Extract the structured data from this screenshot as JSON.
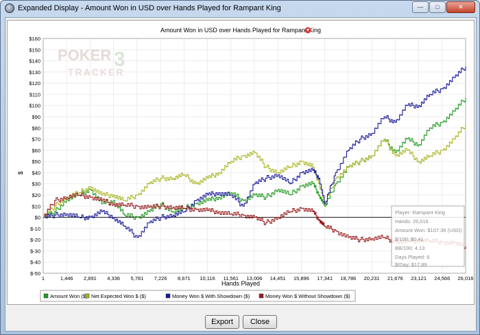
{
  "window": {
    "title": "Expanded Display - Amount Won in USD over Hands Played for Rampant King",
    "minimize_glyph": "—",
    "maximize_glyph": "□",
    "close_glyph": "✕"
  },
  "watermark": {
    "line1": "POKER",
    "line2": "TRACKER",
    "badge": "3"
  },
  "buttons": {
    "export": "Export",
    "close": "Close"
  },
  "tooltip": {
    "player": "Player: Rampant King",
    "hands": "Hands: 26,016",
    "amount_won": "Amount Won: $107.36 (USD)",
    "per100": "$/100: $0.41",
    "bb100": "BB/100: 4.13",
    "days": "Days Played: 6",
    "per_day": "$/Day: $17.89"
  },
  "colors": {
    "amount_won": "#1f9a1f",
    "net_expected": "#a8b421",
    "showdown": "#1a1a9a",
    "without_showdown": "#9a1a1a",
    "zero_line": "#000000",
    "grid": "#e6e6e6"
  },
  "chart_data": {
    "type": "line",
    "title": "Amount Won in USD over Hands Played for Rampant King",
    "xlabel": "Hands Played",
    "ylabel": "$",
    "xlim": [
      1,
      26016
    ],
    "ylim": [
      -50,
      160
    ],
    "x_ticks": [
      "1",
      "1,446",
      "2,891",
      "4,336",
      "5,781",
      "7,226",
      "8,671",
      "10,116",
      "11,561",
      "13,006",
      "14,451",
      "15,896",
      "17,341",
      "18,786",
      "20,231",
      "21,676",
      "23,121",
      "24,566",
      "26,016"
    ],
    "y_ticks": [
      "$160",
      "$150",
      "$140",
      "$130",
      "$120",
      "$110",
      "$100",
      "$90",
      "$80",
      "$70",
      "$60",
      "$50",
      "$40",
      "$30",
      "$20",
      "$10",
      "$0",
      "$-10",
      "$-20",
      "$-30",
      "$-40",
      "$-50"
    ],
    "x": [
      1,
      700,
      1446,
      2200,
      2891,
      3600,
      4336,
      5000,
      5781,
      6500,
      7226,
      8000,
      8671,
      9400,
      10116,
      10800,
      11561,
      12300,
      13006,
      13700,
      14451,
      15200,
      15896,
      16600,
      17000,
      17341,
      18000,
      18786,
      19500,
      20231,
      21000,
      21676,
      22400,
      23121,
      23800,
      24566,
      25300,
      26016
    ],
    "series": [
      {
        "name": "Amount Won ($)",
        "color_key": "amount_won",
        "values": [
          0,
          5,
          16,
          20,
          25,
          12,
          15,
          2,
          0,
          5,
          12,
          5,
          8,
          12,
          15,
          18,
          22,
          15,
          20,
          18,
          25,
          20,
          28,
          30,
          20,
          10,
          30,
          45,
          50,
          55,
          70,
          58,
          70,
          65,
          80,
          85,
          95,
          107
        ]
      },
      {
        "name": "Net Expected Won $ ($)",
        "color_key": "net_expected",
        "values": [
          0,
          10,
          18,
          22,
          27,
          20,
          20,
          15,
          20,
          30,
          35,
          35,
          38,
          30,
          35,
          40,
          50,
          55,
          58,
          45,
          40,
          45,
          50,
          45,
          30,
          12,
          35,
          45,
          50,
          55,
          70,
          55,
          60,
          50,
          55,
          60,
          70,
          83
        ]
      },
      {
        "name": "Money Won $ With Showdown ($)",
        "color_key": "showdown",
        "values": [
          0,
          2,
          3,
          0,
          0,
          5,
          0,
          -8,
          -18,
          -5,
          0,
          2,
          5,
          15,
          20,
          22,
          20,
          10,
          30,
          35,
          38,
          30,
          40,
          42,
          35,
          12,
          40,
          60,
          70,
          75,
          90,
          85,
          100,
          100,
          110,
          115,
          125,
          135
        ]
      },
      {
        "name": "Money Won $ Without Showdown ($)",
        "color_key": "without_showdown",
        "values": [
          0,
          15,
          18,
          20,
          18,
          15,
          12,
          11,
          10,
          9,
          10,
          9,
          8,
          7,
          6,
          5,
          3,
          2,
          0,
          -5,
          0,
          5,
          8,
          5,
          -2,
          -8,
          -12,
          -18,
          -20,
          -19,
          -18,
          -22,
          -22,
          -20,
          -21,
          -22,
          -23,
          -26
        ]
      }
    ],
    "legend": "bottom",
    "grid": true
  }
}
